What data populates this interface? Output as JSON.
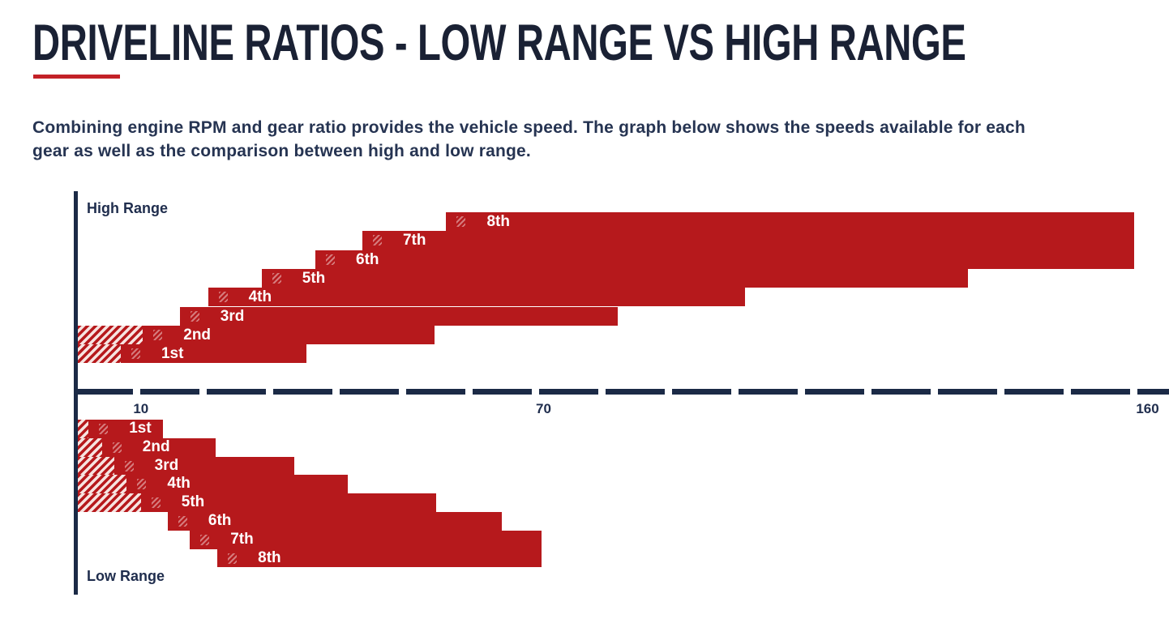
{
  "title": "DRIVELINE RATIOS - LOW RANGE VS HIGH RANGE",
  "description_lines": [
    "Combining engine RPM and gear ratio provides the vehicle speed. The graph below shows the speeds available for each",
    "gear as well as the comparison between high and low range."
  ],
  "colors": {
    "bar_red": "#b6191c",
    "hatch_light": "#f6e3e0",
    "axis_navy": "#1b2a46",
    "title_navy": "#1a2134",
    "text_navy": "#263452",
    "accent_red": "#c32127",
    "bar_label_white": "#ffffff"
  },
  "chart_data": {
    "type": "bar",
    "subtype": "horizontal-range-bars",
    "title": "",
    "xlabel": "",
    "ylabel": "",
    "xlim": [
      0,
      163.2
    ],
    "x_ticks": [
      10,
      70,
      160
    ],
    "tick_labels": [
      "10",
      "70",
      "160"
    ],
    "axis_style": "dashed-horizontal",
    "grid": false,
    "legend": false,
    "sections": [
      {
        "label": "High Range",
        "row_order": "1st-at-bottom",
        "gears": [
          {
            "label": "1st",
            "hatch_start": 0.6,
            "start": 7.0,
            "end": 34.7
          },
          {
            "label": "2nd",
            "hatch_start": 0.6,
            "start": 10.3,
            "end": 53.7
          },
          {
            "label": "3rd",
            "hatch_start": null,
            "start": 15.8,
            "end": 81.0
          },
          {
            "label": "4th",
            "hatch_start": null,
            "start": 20.0,
            "end": 100.0
          },
          {
            "label": "5th",
            "hatch_start": null,
            "start": 28.0,
            "end": 133.3
          },
          {
            "label": "6th",
            "hatch_start": null,
            "start": 36.0,
            "end": 158.0
          },
          {
            "label": "7th",
            "hatch_start": null,
            "start": 43.0,
            "end": 158.0
          },
          {
            "label": "8th",
            "hatch_start": null,
            "start": 55.5,
            "end": 158.0
          }
        ]
      },
      {
        "label": "Low Range",
        "row_order": "1st-at-top",
        "gears": [
          {
            "label": "1st",
            "hatch_start": 0.6,
            "start": 2.2,
            "end": 13.3
          },
          {
            "label": "2nd",
            "hatch_start": 0.6,
            "start": 4.2,
            "end": 21.2
          },
          {
            "label": "3rd",
            "hatch_start": 0.6,
            "start": 6.0,
            "end": 32.8
          },
          {
            "label": "4th",
            "hatch_start": 0.6,
            "start": 7.9,
            "end": 40.8
          },
          {
            "label": "5th",
            "hatch_start": 0.6,
            "start": 10.0,
            "end": 54.0
          },
          {
            "label": "6th",
            "hatch_start": null,
            "start": 14.0,
            "end": 63.8
          },
          {
            "label": "7th",
            "hatch_start": null,
            "start": 17.3,
            "end": 69.7
          },
          {
            "label": "8th",
            "hatch_start": null,
            "start": 21.4,
            "end": 69.7
          }
        ]
      }
    ]
  }
}
